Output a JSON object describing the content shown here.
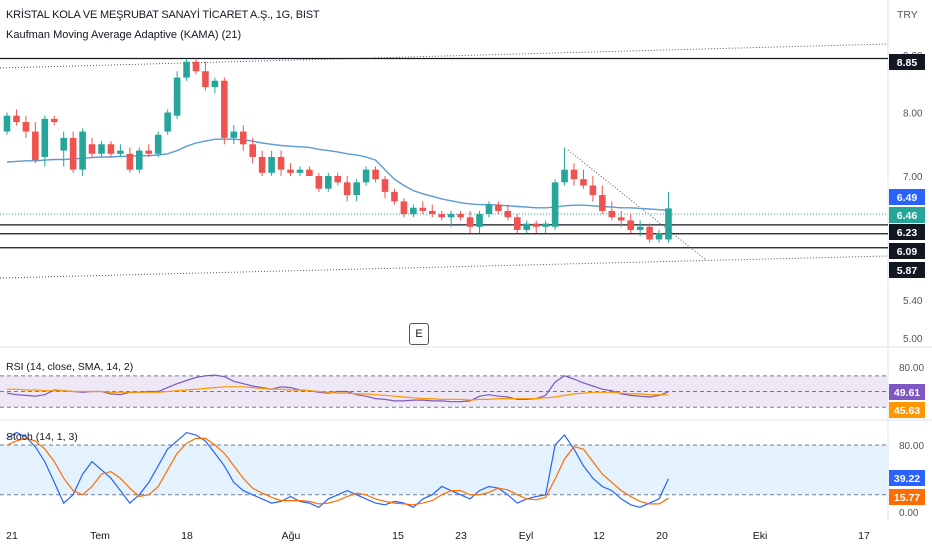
{
  "header": {
    "title": "KRİSTAL KOLA VE MEŞRUBAT SANAYİ TİCARET A.Ş., 1G, BIST",
    "indicator": "Kaufman Moving Average Adaptive (KAMA) (21)",
    "currency": "TRY",
    "e_button": "E"
  },
  "colors": {
    "up": "#26a69a",
    "down": "#ef5350",
    "kama": "#5b9bd5",
    "rsi": "#7e57c2",
    "rsi_ma": "#ff9800",
    "stoch_k": "#2962ff",
    "stoch_d": "#ff6d00",
    "band_rsi": "#ede7f6",
    "band_stoch": "#e3f2fd"
  },
  "chart_data": [
    {
      "type": "candlestick",
      "title": "KRİSTAL KOLA VE MEŞRUBAT SANAYİ TİCARET A.Ş., 1G, BIST",
      "yaxis_ticks": [
        "9.00",
        "8.00",
        "7.00",
        "5.40",
        "5.00"
      ],
      "ylim": [
        4.9,
        9.2
      ],
      "price_labels": [
        {
          "value": "8.85",
          "style": "black"
        },
        {
          "value": "6.49",
          "style": "blue"
        },
        {
          "value": "6.46",
          "style": "green"
        },
        {
          "value": "6.23",
          "style": "black"
        },
        {
          "value": "6.09",
          "style": "black"
        },
        {
          "value": "5.87",
          "style": "black"
        }
      ],
      "horizontal_lines": [
        8.85,
        6.23,
        6.09,
        5.87
      ],
      "xaxis_ticks": [
        "21",
        "Tem",
        "18",
        "Ağu",
        "15",
        "23",
        "Eyl",
        "12",
        "20",
        "Eki",
        "17"
      ],
      "candles": [
        [
          7.7,
          8.0,
          7.65,
          7.95
        ],
        [
          7.95,
          8.05,
          7.8,
          7.85
        ],
        [
          7.85,
          7.95,
          7.6,
          7.7
        ],
        [
          7.7,
          7.85,
          7.2,
          7.25
        ],
        [
          7.3,
          7.95,
          7.15,
          7.9
        ],
        [
          7.9,
          7.95,
          7.8,
          7.85
        ],
        [
          7.4,
          7.7,
          7.15,
          7.6
        ],
        [
          7.6,
          7.7,
          7.05,
          7.1
        ],
        [
          7.1,
          7.75,
          7.0,
          7.7
        ],
        [
          7.5,
          7.6,
          7.3,
          7.35
        ],
        [
          7.35,
          7.55,
          7.3,
          7.5
        ],
        [
          7.5,
          7.55,
          7.3,
          7.35
        ],
        [
          7.35,
          7.5,
          7.3,
          7.4
        ],
        [
          7.35,
          7.45,
          7.05,
          7.1
        ],
        [
          7.1,
          7.45,
          7.05,
          7.4
        ],
        [
          7.4,
          7.5,
          7.3,
          7.35
        ],
        [
          7.35,
          7.7,
          7.3,
          7.65
        ],
        [
          7.7,
          8.05,
          7.65,
          8.0
        ],
        [
          7.95,
          8.65,
          7.9,
          8.55
        ],
        [
          8.55,
          8.85,
          8.5,
          8.8
        ],
        [
          8.8,
          8.85,
          8.6,
          8.65
        ],
        [
          8.65,
          8.8,
          8.35,
          8.4
        ],
        [
          8.4,
          8.55,
          8.3,
          8.5
        ],
        [
          8.5,
          8.55,
          7.5,
          7.6
        ],
        [
          7.6,
          7.8,
          7.5,
          7.7
        ],
        [
          7.7,
          7.8,
          7.4,
          7.5
        ],
        [
          7.5,
          7.6,
          7.2,
          7.3
        ],
        [
          7.3,
          7.4,
          7.0,
          7.05
        ],
        [
          7.05,
          7.4,
          7.0,
          7.3
        ],
        [
          7.3,
          7.4,
          7.0,
          7.1
        ],
        [
          7.1,
          7.2,
          7.0,
          7.05
        ],
        [
          7.05,
          7.15,
          7.0,
          7.1
        ],
        [
          7.1,
          7.15,
          7.0,
          7.0
        ],
        [
          7.0,
          7.05,
          6.75,
          6.8
        ],
        [
          6.8,
          7.05,
          6.75,
          7.0
        ],
        [
          7.0,
          7.05,
          6.85,
          6.9
        ],
        [
          6.9,
          7.0,
          6.6,
          6.7
        ],
        [
          6.7,
          6.95,
          6.6,
          6.9
        ],
        [
          6.9,
          7.15,
          6.85,
          7.1
        ],
        [
          7.1,
          7.15,
          6.9,
          6.95
        ],
        [
          6.95,
          7.0,
          6.65,
          6.75
        ],
        [
          6.75,
          6.8,
          6.55,
          6.6
        ],
        [
          6.6,
          6.65,
          6.35,
          6.4
        ],
        [
          6.4,
          6.55,
          6.35,
          6.5
        ],
        [
          6.5,
          6.6,
          6.4,
          6.45
        ],
        [
          6.45,
          6.55,
          6.35,
          6.4
        ],
        [
          6.4,
          6.45,
          6.3,
          6.35
        ],
        [
          6.35,
          6.45,
          6.2,
          6.4
        ],
        [
          6.4,
          6.45,
          6.3,
          6.35
        ],
        [
          6.35,
          6.45,
          6.1,
          6.2
        ],
        [
          6.2,
          6.45,
          6.1,
          6.4
        ],
        [
          6.4,
          6.6,
          6.35,
          6.55
        ],
        [
          6.55,
          6.6,
          6.4,
          6.45
        ],
        [
          6.45,
          6.55,
          6.3,
          6.35
        ],
        [
          6.35,
          6.4,
          6.1,
          6.15
        ],
        [
          6.15,
          6.3,
          6.1,
          6.25
        ],
        [
          6.25,
          6.3,
          6.1,
          6.2
        ],
        [
          6.2,
          6.3,
          6.1,
          6.25
        ],
        [
          6.2,
          6.95,
          6.15,
          6.9
        ],
        [
          6.9,
          7.45,
          6.85,
          7.1
        ],
        [
          7.1,
          7.2,
          6.85,
          6.95
        ],
        [
          6.95,
          7.1,
          6.8,
          6.85
        ],
        [
          6.85,
          7.0,
          6.6,
          6.7
        ],
        [
          6.7,
          6.85,
          6.4,
          6.45
        ],
        [
          6.45,
          6.6,
          6.3,
          6.35
        ],
        [
          6.35,
          6.45,
          6.2,
          6.3
        ],
        [
          6.3,
          6.4,
          6.1,
          6.15
        ],
        [
          6.15,
          6.3,
          6.05,
          6.2
        ],
        [
          6.2,
          6.25,
          5.95,
          6.0
        ],
        [
          6.0,
          6.15,
          5.95,
          6.1
        ],
        [
          6.0,
          6.75,
          5.95,
          6.49
        ]
      ],
      "kama": [
        7.22,
        7.23,
        7.24,
        7.24,
        7.25,
        7.26,
        7.26,
        7.27,
        7.28,
        7.29,
        7.3,
        7.3,
        7.31,
        7.31,
        7.32,
        7.32,
        7.33,
        7.35,
        7.4,
        7.47,
        7.52,
        7.55,
        7.58,
        7.58,
        7.58,
        7.57,
        7.55,
        7.52,
        7.5,
        7.48,
        7.47,
        7.46,
        7.45,
        7.42,
        7.4,
        7.38,
        7.35,
        7.33,
        7.3,
        7.25,
        7.1,
        6.95,
        6.85,
        6.77,
        6.72,
        6.68,
        6.64,
        6.61,
        6.58,
        6.56,
        6.55,
        6.55,
        6.54,
        6.53,
        6.52,
        6.51,
        6.5,
        6.5,
        6.51,
        6.53,
        6.54,
        6.54,
        6.53,
        6.52,
        6.51,
        6.5,
        6.5,
        6.49,
        6.48,
        6.47,
        6.46
      ]
    },
    {
      "type": "line",
      "title": "RSI (14, close, SMA, 14, 2)",
      "yaxis_ticks": [
        "80.00"
      ],
      "levels": [
        70,
        50,
        30
      ],
      "ylim": [
        25,
        85
      ],
      "value_labels": [
        {
          "value": "49.61"
        },
        {
          "value": "45.63"
        }
      ],
      "series": [
        {
          "values": [
            48,
            46,
            45,
            44,
            46,
            52,
            51,
            50,
            49,
            50,
            50,
            47,
            46,
            49,
            49,
            50,
            50,
            55,
            60,
            64,
            68,
            70,
            71,
            69,
            63,
            60,
            57,
            55,
            53,
            56,
            55,
            52,
            51,
            49,
            48,
            50,
            50,
            46,
            44,
            41,
            40,
            38,
            38,
            39,
            39,
            38,
            38,
            37,
            37,
            38,
            44,
            46,
            44,
            43,
            40,
            40,
            41,
            45,
            62,
            70,
            66,
            61,
            57,
            53,
            51,
            47,
            45,
            44,
            43,
            45,
            49.61
          ]
        },
        {
          "values": [
            53,
            53,
            52,
            52,
            51,
            51,
            51,
            50,
            50,
            50,
            50,
            49,
            49,
            49,
            49,
            49,
            49,
            50,
            51,
            52,
            53,
            54,
            55,
            56,
            56,
            56,
            55,
            54,
            53,
            53,
            52,
            52,
            51,
            50,
            49,
            48,
            48,
            47,
            47,
            46,
            45,
            44,
            43,
            42,
            41,
            41,
            40,
            40,
            40,
            39,
            40,
            40,
            41,
            41,
            41,
            41,
            41,
            42,
            43,
            45,
            47,
            48,
            49,
            49,
            49,
            48,
            47,
            47,
            46,
            46,
            45.63
          ]
        }
      ]
    },
    {
      "type": "line",
      "title": "Stoch (14, 1, 3)",
      "yaxis_ticks": [
        "80.00",
        "0.00"
      ],
      "levels": [
        80,
        20
      ],
      "ylim": [
        -5,
        105
      ],
      "value_labels": [
        {
          "value": "39.22"
        },
        {
          "value": "15.77"
        }
      ],
      "series": [
        {
          "values": [
            88,
            95,
            90,
            78,
            60,
            35,
            10,
            20,
            45,
            60,
            50,
            40,
            25,
            10,
            20,
            35,
            55,
            75,
            85,
            95,
            92,
            85,
            70,
            55,
            35,
            25,
            20,
            15,
            10,
            12,
            18,
            12,
            10,
            5,
            15,
            20,
            25,
            20,
            15,
            10,
            8,
            12,
            10,
            5,
            15,
            20,
            30,
            25,
            20,
            15,
            25,
            30,
            28,
            20,
            10,
            15,
            18,
            20,
            80,
            92,
            75,
            55,
            40,
            30,
            25,
            15,
            8,
            5,
            10,
            15,
            39.22
          ]
        },
        {
          "values": [
            80,
            85,
            88,
            85,
            75,
            60,
            40,
            25,
            20,
            30,
            45,
            48,
            40,
            28,
            18,
            20,
            30,
            50,
            70,
            82,
            88,
            88,
            80,
            70,
            55,
            40,
            28,
            22,
            17,
            13,
            13,
            13,
            12,
            9,
            10,
            13,
            18,
            22,
            20,
            15,
            12,
            10,
            9,
            8,
            10,
            13,
            20,
            25,
            25,
            20,
            20,
            23,
            28,
            26,
            20,
            15,
            14,
            17,
            39,
            63,
            78,
            75,
            60,
            45,
            35,
            25,
            18,
            12,
            9,
            9,
            15.77
          ]
        }
      ]
    }
  ]
}
